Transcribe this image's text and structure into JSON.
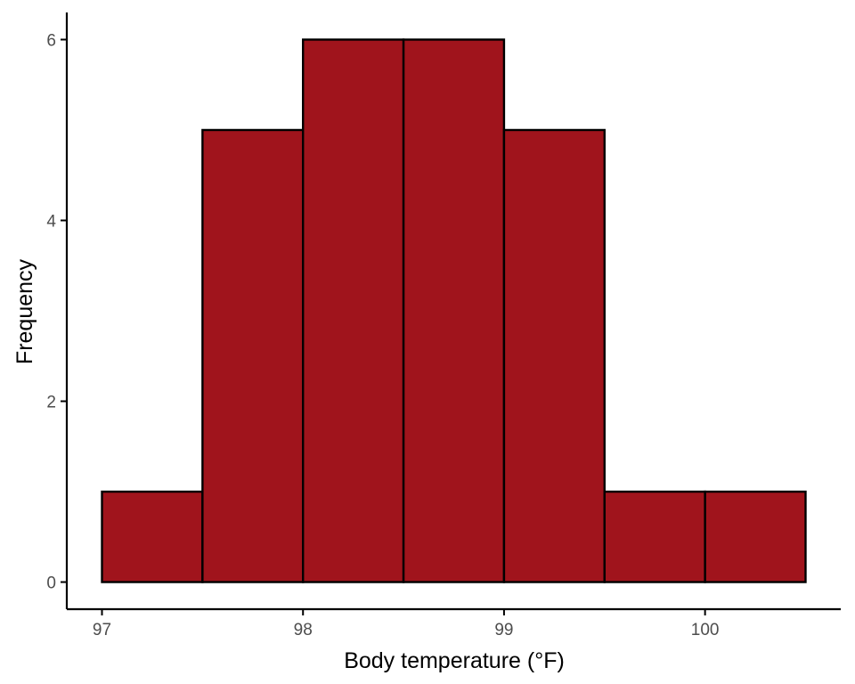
{
  "chart_data": {
    "type": "bar",
    "subtype": "histogram",
    "bins": [
      {
        "x0": 97.0,
        "x1": 97.5,
        "count": 1
      },
      {
        "x0": 97.5,
        "x1": 98.0,
        "count": 5
      },
      {
        "x0": 98.0,
        "x1": 98.5,
        "count": 6
      },
      {
        "x0": 98.5,
        "x1": 99.0,
        "count": 6
      },
      {
        "x0": 99.0,
        "x1": 99.5,
        "count": 5
      },
      {
        "x0": 99.5,
        "x1": 100.0,
        "count": 1
      },
      {
        "x0": 100.0,
        "x1": 100.5,
        "count": 1
      }
    ],
    "xlabel": "Body temperature (°F)",
    "ylabel": "Frequency",
    "xlim": [
      96.825,
      100.675
    ],
    "ylim": [
      -0.3,
      6.3
    ],
    "xticks": [
      97,
      98,
      99,
      100
    ],
    "xtick_labels": [
      "97",
      "98",
      "99",
      "100"
    ],
    "yticks": [
      0,
      2,
      4,
      6
    ],
    "ytick_labels": [
      "0",
      "2",
      "4",
      "6"
    ],
    "grid": false,
    "legend": "none",
    "colors": {
      "bar_fill": "#A0141C",
      "bar_outline": "#000000",
      "axis": "#000000",
      "tick_text": "#4D4D4D"
    }
  }
}
